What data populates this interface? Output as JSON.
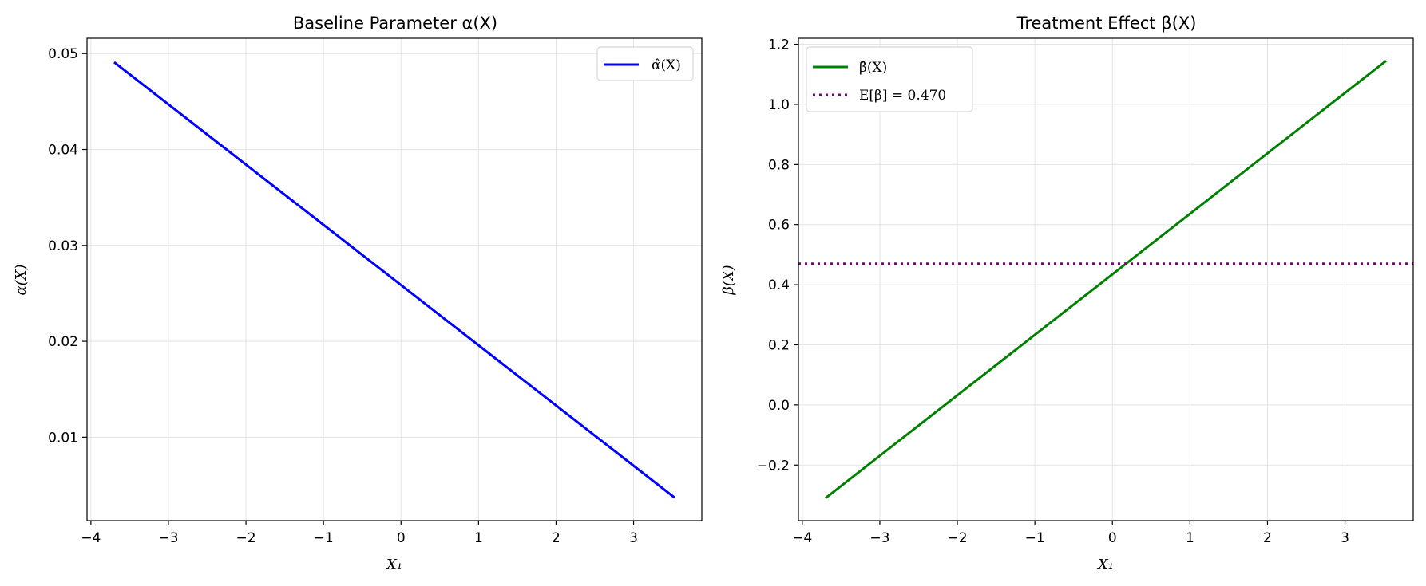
{
  "chart_data": [
    {
      "type": "line",
      "title": "Baseline Parameter α(X)",
      "xlabel": "X₁",
      "ylabel": "α(X)",
      "xlim": [
        -4.05,
        3.88
      ],
      "ylim": [
        0.0013,
        0.0516
      ],
      "xticks": [
        -4,
        -3,
        -2,
        -1,
        0,
        1,
        2,
        3
      ],
      "xtick_labels": [
        "−4",
        "−3",
        "−2",
        "−1",
        "0",
        "1",
        "2",
        "3"
      ],
      "yticks": [
        0.01,
        0.02,
        0.03,
        0.04,
        0.05
      ],
      "ytick_labels": [
        "0.01",
        "0.02",
        "0.03",
        "0.04",
        "0.05"
      ],
      "grid": true,
      "legend_position": "top-right",
      "series": [
        {
          "name": "α̂(X)",
          "color": "#0000ff",
          "style": "solid",
          "x": [
            -3.7,
            3.53
          ],
          "y": [
            0.0491,
            0.0037
          ]
        }
      ]
    },
    {
      "type": "line",
      "title": "Treatment Effect β(X)",
      "xlabel": "X₁",
      "ylabel": "β(X)",
      "xlim": [
        -4.05,
        3.88
      ],
      "ylim": [
        -0.385,
        1.22
      ],
      "xticks": [
        -4,
        -3,
        -2,
        -1,
        0,
        1,
        2,
        3
      ],
      "xtick_labels": [
        "−4",
        "−3",
        "−2",
        "−1",
        "0",
        "1",
        "2",
        "3"
      ],
      "yticks": [
        -0.2,
        0.0,
        0.2,
        0.4,
        0.6,
        0.8,
        1.0,
        1.2
      ],
      "ytick_labels": [
        "−0.2",
        "0.0",
        "0.2",
        "0.4",
        "0.6",
        "0.8",
        "1.0",
        "1.2"
      ],
      "grid": true,
      "legend_position": "top-left",
      "series": [
        {
          "name": "β̂(X)",
          "color": "#008000",
          "style": "solid",
          "x": [
            -3.7,
            3.53
          ],
          "y": [
            -0.31,
            1.145
          ]
        },
        {
          "name": "E[β] = 0.470",
          "color": "#800080",
          "style": "dotted",
          "x": [
            -4.05,
            3.88
          ],
          "y": [
            0.47,
            0.47
          ]
        }
      ]
    }
  ]
}
